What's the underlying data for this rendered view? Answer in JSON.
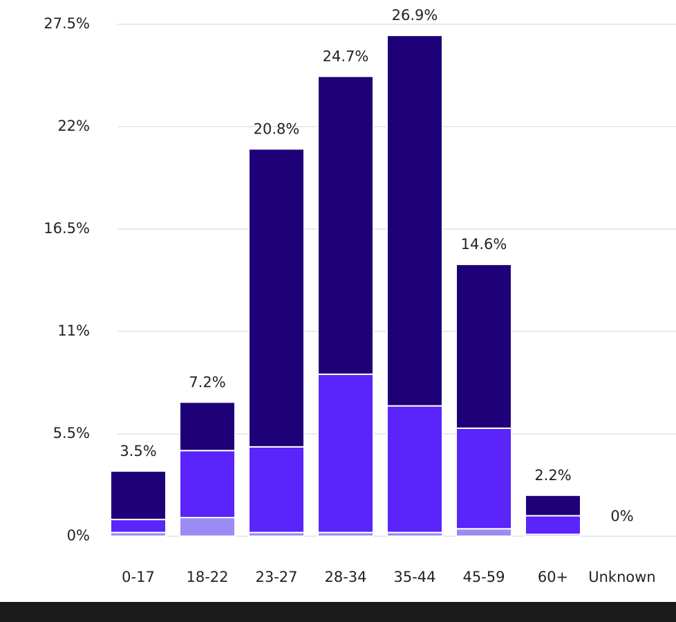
{
  "chart_data": {
    "type": "stacked-bar",
    "categories": [
      "0-17",
      "18-22",
      "23-27",
      "28-34",
      "35-44",
      "45-59",
      "60+",
      "Unknown"
    ],
    "series": [
      {
        "color": "#9b8cf5",
        "values": [
          0.2,
          1.0,
          0.2,
          0.2,
          0.2,
          0.4,
          0.1,
          0
        ]
      },
      {
        "color": "#5a24fa",
        "values": [
          0.7,
          3.6,
          4.6,
          8.5,
          6.8,
          5.4,
          1.0,
          0
        ]
      },
      {
        "color": "#1e0078",
        "values": [
          2.6,
          2.6,
          16.0,
          16.0,
          19.9,
          8.8,
          1.1,
          0
        ]
      }
    ],
    "totals": [
      3.5,
      7.2,
      20.8,
      24.7,
      26.9,
      14.6,
      2.2,
      0
    ],
    "total_labels": [
      "3.5%",
      "7.2%",
      "20.8%",
      "24.7%",
      "26.9%",
      "14.6%",
      "2.2%",
      "0%"
    ],
    "ylim": [
      0,
      27.5
    ],
    "yticks": [
      {
        "value": 0,
        "label": "0%"
      },
      {
        "value": 5.5,
        "label": "5.5%"
      },
      {
        "value": 11,
        "label": "11%"
      },
      {
        "value": 16.5,
        "label": "16.5%"
      },
      {
        "value": 22,
        "label": "22%"
      },
      {
        "value": 27.5,
        "label": "27.5%"
      }
    ],
    "grid": true
  }
}
